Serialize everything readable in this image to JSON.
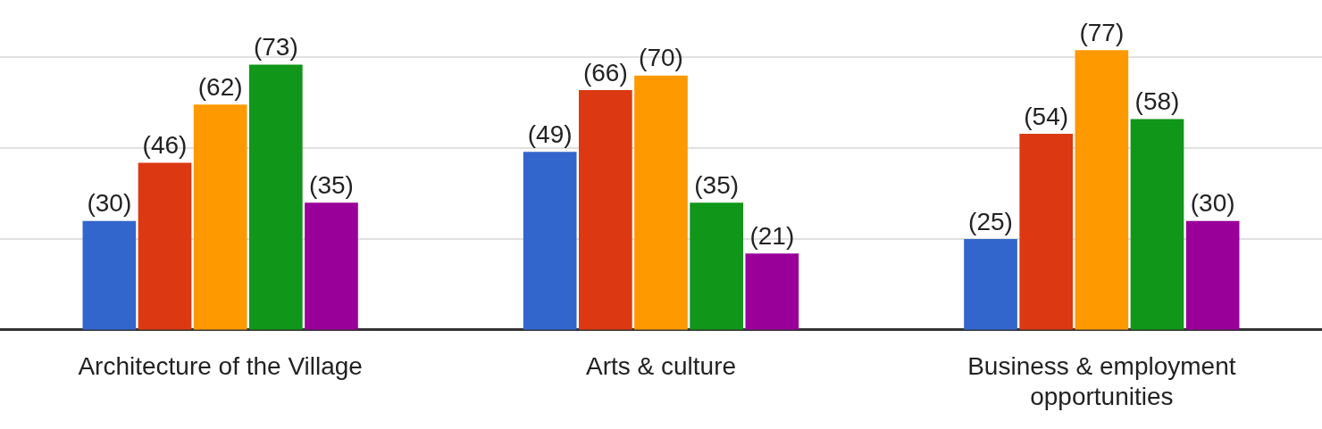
{
  "chart_data": {
    "type": "bar",
    "categories": [
      "Architecture of the Village",
      "Arts & culture",
      "Business & employment opportunities"
    ],
    "series": [
      {
        "color": "#3366cc",
        "values": [
          30,
          49,
          25
        ],
        "value_labels": [
          "(30)",
          "(49)",
          "(25)"
        ]
      },
      {
        "color": "#dc3912",
        "values": [
          46,
          66,
          54
        ],
        "value_labels": [
          "(46)",
          "(66)",
          "(54)"
        ]
      },
      {
        "color": "#ff9900",
        "values": [
          62,
          70,
          77
        ],
        "value_labels": [
          "(62)",
          "(70)",
          "(77)"
        ]
      },
      {
        "color": "#109618",
        "values": [
          73,
          35,
          58
        ],
        "value_labels": [
          "(73)",
          "(35)",
          "(58)"
        ]
      },
      {
        "color": "#990099",
        "values": [
          35,
          21,
          30
        ],
        "value_labels": [
          "(35)",
          "(21)",
          "(30)"
        ]
      }
    ],
    "yticks": [
      {
        "value": 25,
        "label": null
      },
      {
        "value": 50,
        "label": null
      },
      {
        "value": 75,
        "label": null
      }
    ],
    "grid": "y",
    "tick_labels": "x",
    "legend": false
  }
}
